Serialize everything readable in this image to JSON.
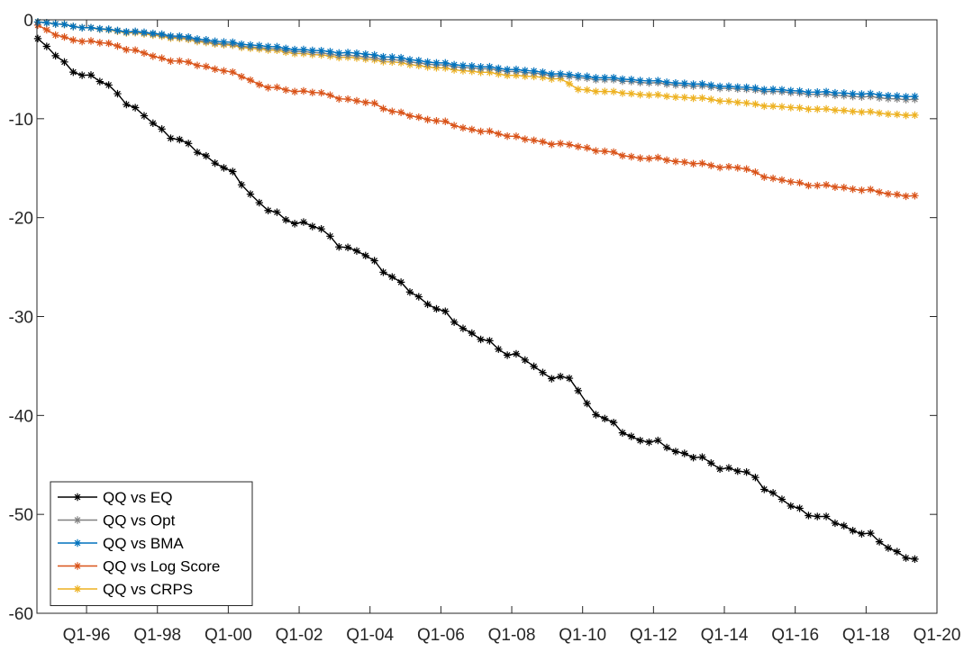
{
  "chart_data": {
    "type": "line",
    "title": "",
    "xlabel": "",
    "ylabel": "",
    "x_tick_labels": [
      "Q1-96",
      "Q1-98",
      "Q1-00",
      "Q1-02",
      "Q1-04",
      "Q1-06",
      "Q1-08",
      "Q1-10",
      "Q1-12",
      "Q1-14",
      "Q1-16",
      "Q1-18",
      "Q1-20"
    ],
    "x_tick_values": [
      1996,
      1998,
      2000,
      2002,
      2004,
      2006,
      2008,
      2010,
      2012,
      2014,
      2016,
      2018,
      2020
    ],
    "xlim": [
      1994.6,
      2020.0
    ],
    "x_range_note": "quarterly observations from 1994 Q3 to 2019 Q2",
    "ylim": [
      -60,
      0
    ],
    "y_ticks": [
      0,
      -10,
      -20,
      -30,
      -40,
      -50,
      -60
    ],
    "grid": false,
    "legend_position": "bottom-left",
    "marker": "asterisk",
    "series": [
      {
        "name": "QQ vs EQ",
        "color": "#000000",
        "anchors": [
          [
            1994.625,
            -1.8
          ],
          [
            1995.5,
            -5
          ],
          [
            1996,
            -5.5
          ],
          [
            1996.75,
            -7
          ],
          [
            1997.5,
            -9.5
          ],
          [
            1998.5,
            -12
          ],
          [
            1999.5,
            -14
          ],
          [
            2000.25,
            -16
          ],
          [
            2001,
            -19
          ],
          [
            2001.5,
            -20
          ],
          [
            2002.25,
            -20.7
          ],
          [
            2002.75,
            -21.5
          ],
          [
            2003.25,
            -23
          ],
          [
            2004.0,
            -24
          ],
          [
            2004.25,
            -24.8
          ],
          [
            2004.75,
            -26.5
          ],
          [
            2006.0,
            -29.5
          ],
          [
            2007.0,
            -32
          ],
          [
            2007.75,
            -33.5
          ],
          [
            2008.25,
            -34
          ],
          [
            2008.75,
            -35.6
          ],
          [
            2009.75,
            -36.5
          ],
          [
            2010.0,
            -38.5
          ],
          [
            2010.5,
            -40
          ],
          [
            2011.25,
            -42
          ],
          [
            2012.25,
            -43
          ],
          [
            2013.0,
            -44
          ],
          [
            2013.75,
            -45
          ],
          [
            2014.75,
            -46
          ],
          [
            2015.75,
            -49
          ],
          [
            2016.5,
            -50
          ],
          [
            2017.25,
            -51
          ],
          [
            2018.0,
            -52
          ],
          [
            2018.75,
            -53.5
          ],
          [
            2019.375,
            -54.8
          ]
        ]
      },
      {
        "name": "QQ vs Opt",
        "color": "#808080",
        "anchors": [
          [
            1994.625,
            -0.2
          ],
          [
            1996,
            -0.8
          ],
          [
            1998,
            -1.5
          ],
          [
            2000,
            -2.5
          ],
          [
            2002,
            -3.2
          ],
          [
            2004,
            -3.8
          ],
          [
            2006,
            -4.6
          ],
          [
            2008,
            -5.2
          ],
          [
            2010,
            -5.9
          ],
          [
            2012,
            -6.4
          ],
          [
            2014,
            -6.9
          ],
          [
            2016,
            -7.4
          ],
          [
            2018,
            -7.8
          ],
          [
            2019.375,
            -8.1
          ]
        ]
      },
      {
        "name": "QQ vs BMA",
        "color": "#0072BD",
        "anchors": [
          [
            1994.625,
            -0.2
          ],
          [
            1996,
            -0.8
          ],
          [
            1998,
            -1.4
          ],
          [
            2000,
            -2.3
          ],
          [
            2002,
            -3.0
          ],
          [
            2004,
            -3.5
          ],
          [
            2006,
            -4.4
          ],
          [
            2008,
            -5.0
          ],
          [
            2010,
            -5.7
          ],
          [
            2012,
            -6.2
          ],
          [
            2014,
            -6.7
          ],
          [
            2016,
            -7.2
          ],
          [
            2018,
            -7.5
          ],
          [
            2019.375,
            -7.8
          ]
        ]
      },
      {
        "name": "QQ vs Log Score",
        "color": "#D95319",
        "anchors": [
          [
            1994.625,
            -0.5
          ],
          [
            1995.25,
            -1.8
          ],
          [
            1996.75,
            -2.5
          ],
          [
            1998,
            -3.8
          ],
          [
            1999.5,
            -4.8
          ],
          [
            2000.5,
            -5.8
          ],
          [
            2001,
            -6.8
          ],
          [
            2002,
            -7.2
          ],
          [
            2002.75,
            -7.5
          ],
          [
            2003.5,
            -8.2
          ],
          [
            2004.25,
            -8.5
          ],
          [
            2004.5,
            -9.2
          ],
          [
            2006,
            -10.3
          ],
          [
            2007.0,
            -11.2
          ],
          [
            2008.0,
            -11.7
          ],
          [
            2008.5,
            -12.2
          ],
          [
            2009.5,
            -12.6
          ],
          [
            2010.5,
            -13.2
          ],
          [
            2011.25,
            -13.8
          ],
          [
            2012.5,
            -14.2
          ],
          [
            2013.5,
            -14.7
          ],
          [
            2014.5,
            -15.0
          ],
          [
            2015.5,
            -16.2
          ],
          [
            2016.5,
            -16.7
          ],
          [
            2017.5,
            -17.0
          ],
          [
            2019.375,
            -17.9
          ]
        ]
      },
      {
        "name": "QQ vs CRPS",
        "color": "#EDB120",
        "anchors": [
          [
            1994.625,
            -0.2
          ],
          [
            1996,
            -0.8
          ],
          [
            1998,
            -1.6
          ],
          [
            2000,
            -2.6
          ],
          [
            2002,
            -3.4
          ],
          [
            2004,
            -4.0
          ],
          [
            2006,
            -4.9
          ],
          [
            2008,
            -5.6
          ],
          [
            2009.5,
            -6.0
          ],
          [
            2009.75,
            -7.0
          ],
          [
            2011.5,
            -7.5
          ],
          [
            2013.5,
            -8.0
          ],
          [
            2015.5,
            -8.8
          ],
          [
            2017.5,
            -9.2
          ],
          [
            2019.375,
            -9.7
          ]
        ]
      }
    ]
  }
}
